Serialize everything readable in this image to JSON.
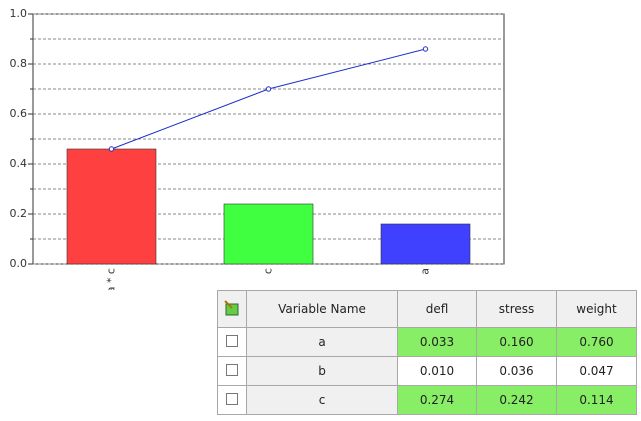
{
  "chart_data": {
    "type": "pareto",
    "categories": [
      "a * c",
      "c",
      "a"
    ],
    "series": [
      {
        "type": "bar",
        "colors": [
          "#ff4040",
          "#40ff40",
          "#4040ff"
        ],
        "values": [
          0.46,
          0.24,
          0.16
        ]
      },
      {
        "type": "line",
        "color": "#1f2fcc",
        "values": [
          0.46,
          0.7,
          0.86
        ]
      }
    ],
    "ylim": [
      0,
      1
    ],
    "yticks": [
      {
        "value": 0,
        "label": "0.0"
      },
      0.2,
      0.4,
      0.6,
      0.8,
      {
        "value": 1,
        "label": "1.0"
      }
    ],
    "minor_yticks": [
      0.1,
      0.3,
      0.5,
      0.7,
      0.9
    ],
    "grid": true
  },
  "table": {
    "columns": [
      "Variable Name",
      "defl",
      "stress",
      "weight"
    ],
    "highlight_color": "#88ee66",
    "rows": [
      {
        "cells": [
          "a",
          "0.033",
          "0.160",
          "0.760"
        ],
        "highlight": true
      },
      {
        "cells": [
          "b",
          "0.010",
          "0.036",
          "0.047"
        ],
        "highlight": false
      },
      {
        "cells": [
          "c",
          "0.274",
          "0.242",
          "0.114"
        ],
        "highlight": true
      }
    ]
  }
}
